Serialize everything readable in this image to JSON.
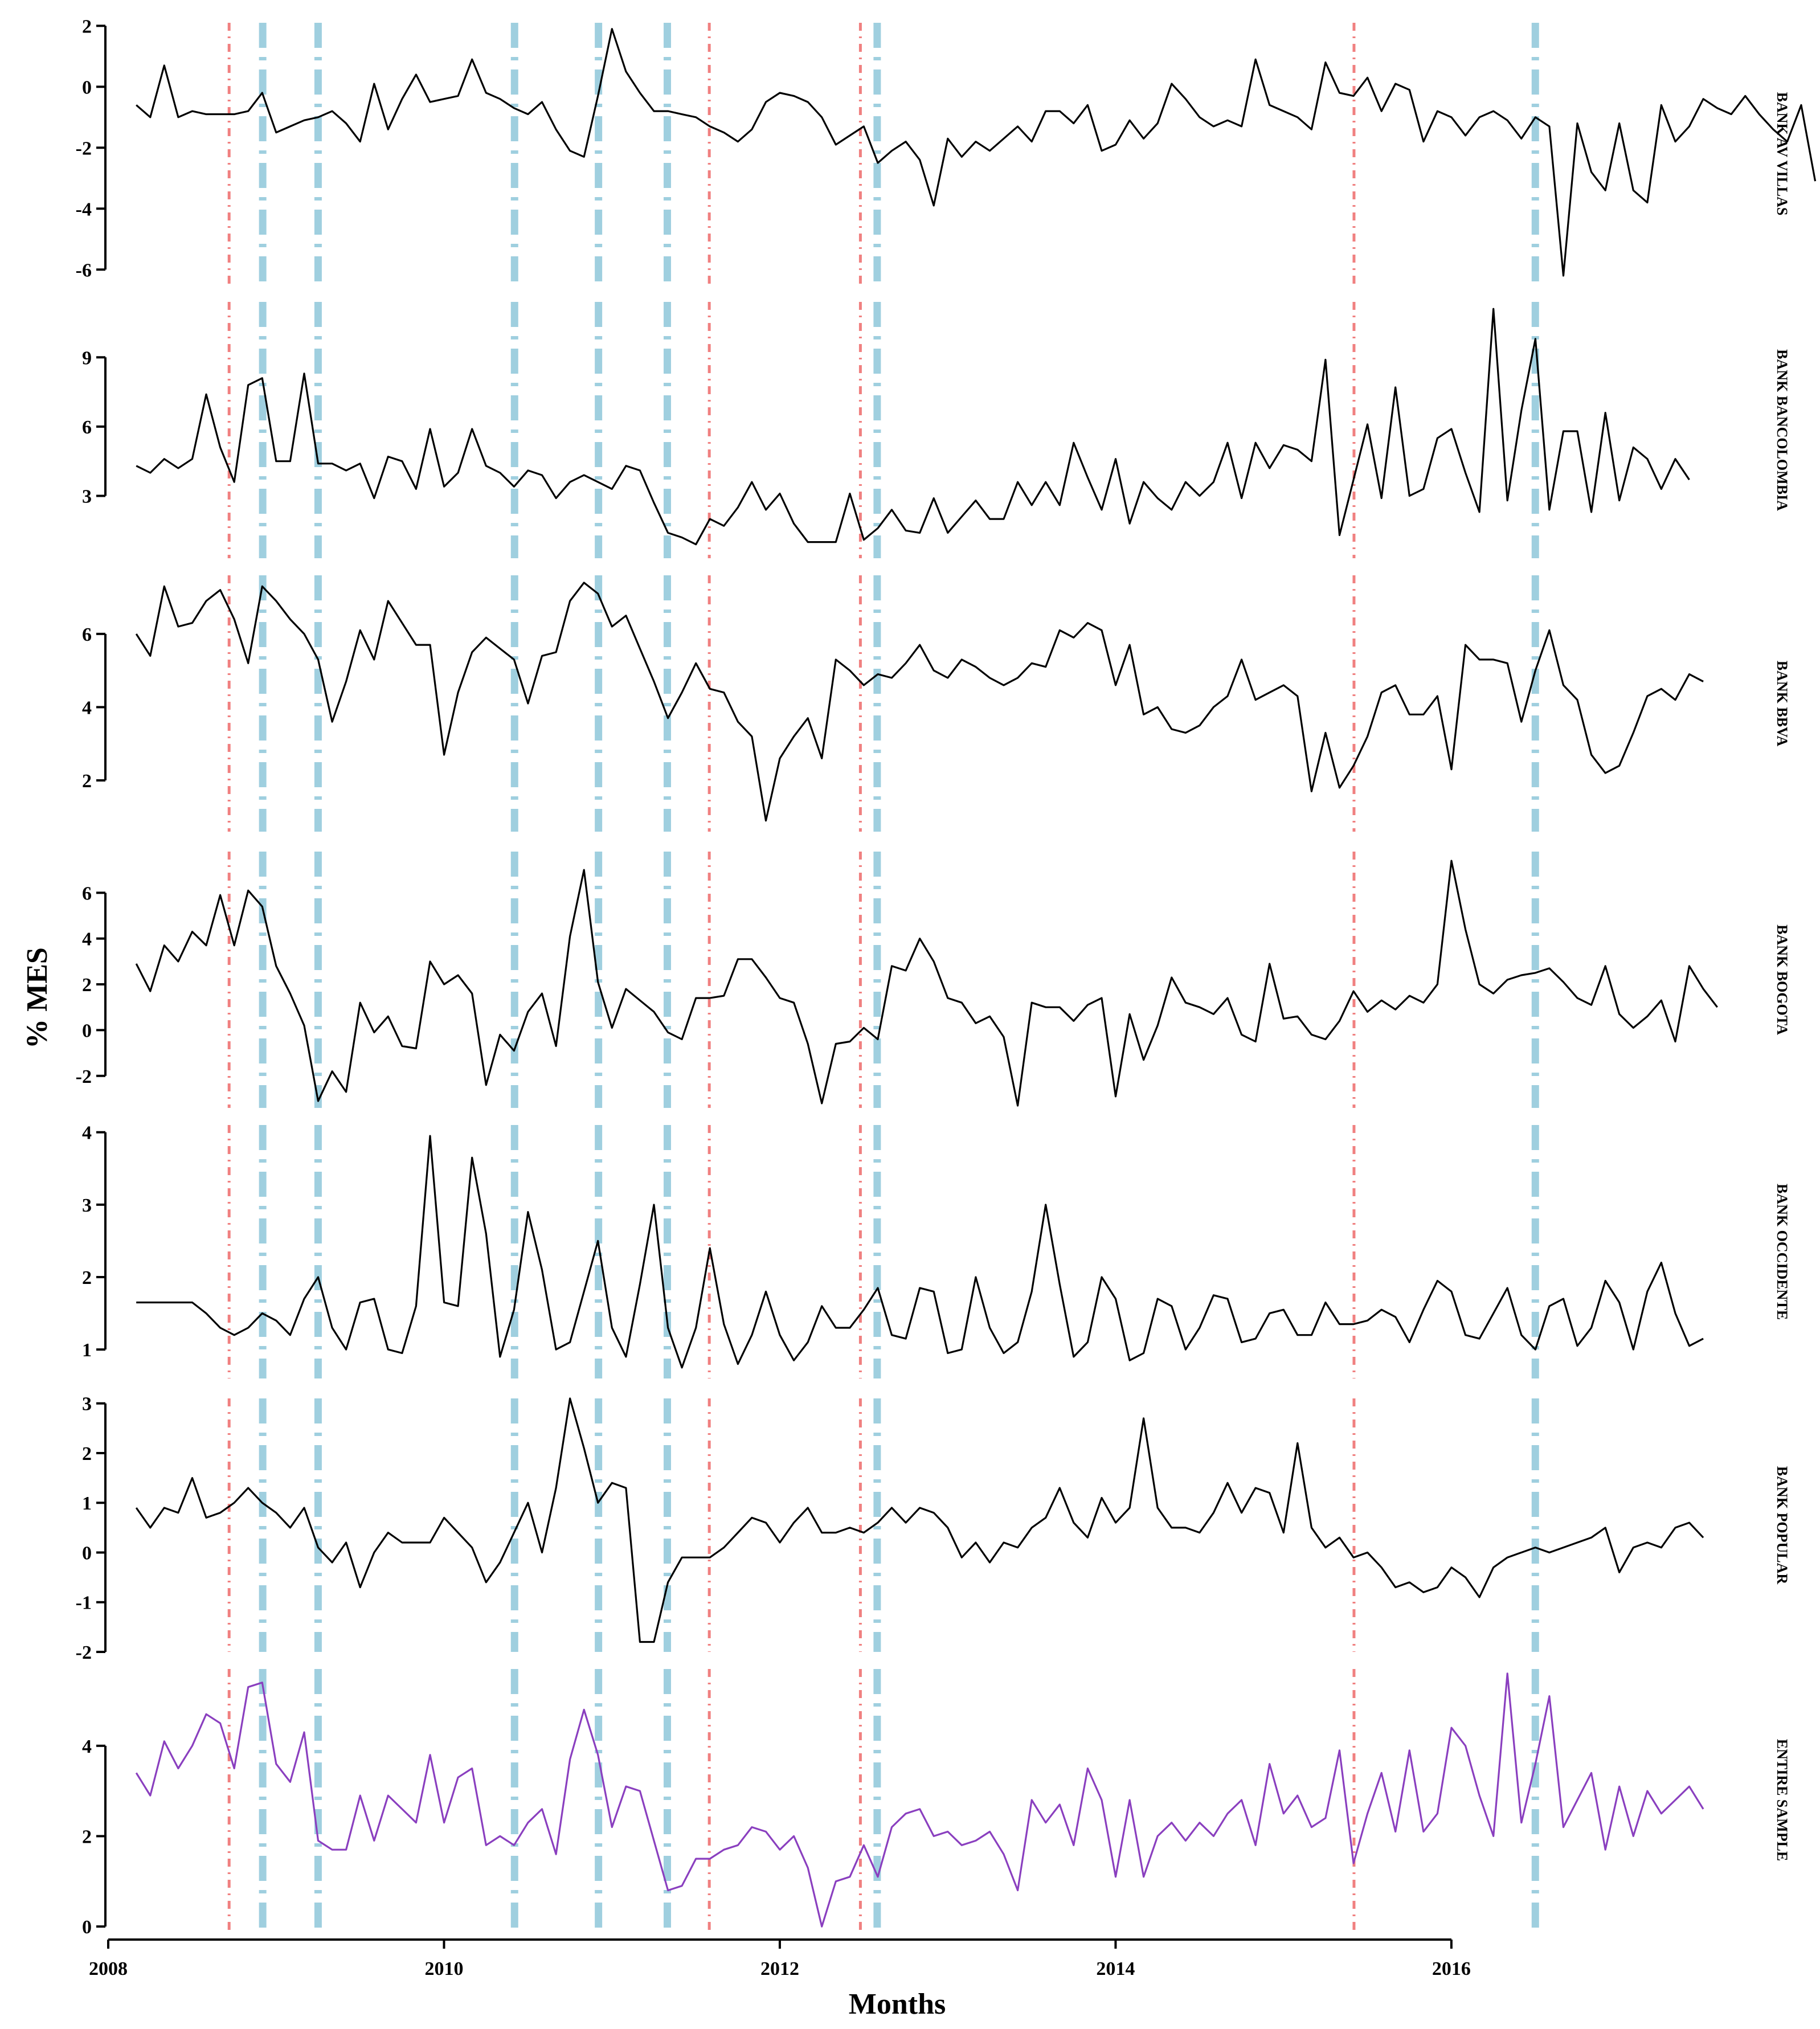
{
  "chart_data": {
    "type": "line",
    "xlabel": "Months",
    "ylabel": "% MES",
    "xlim": [
      2008.0,
      2017.5
    ],
    "x_ticks": [
      "2008",
      "2010",
      "2012",
      "2014",
      "2016"
    ],
    "x_tick_values": [
      2008,
      2010,
      2012,
      2014,
      2016
    ],
    "grid": false,
    "colors": {
      "series": "#000000",
      "entire_sample": "#8a3fbf",
      "red_vline": "#f08080",
      "blue_vline": "#9fcfdf"
    },
    "vlines": {
      "red_dotdash": [
        2008.72,
        2011.58,
        2012.48,
        2015.42
      ],
      "blue_dashdot": [
        2008.92,
        2009.25,
        2010.42,
        2010.92,
        2011.33,
        2012.58,
        2016.5
      ]
    },
    "start": 2008.167,
    "step_months": 1,
    "panels": [
      {
        "name": "BANK AV VILLAS",
        "ylim": [
          -6.5,
          2.1
        ],
        "yticks": [
          "2",
          "0",
          "-2",
          "-4",
          "-6"
        ],
        "ytick_values": [
          2,
          0,
          -2,
          -4,
          -6
        ],
        "color": "#000000",
        "values": [
          -0.6,
          -1.0,
          0.7,
          -1.0,
          -0.8,
          -0.9,
          -0.9,
          -0.9,
          -0.8,
          -0.2,
          -1.5,
          -1.3,
          -1.1,
          -1.0,
          -0.8,
          -1.2,
          -1.8,
          0.1,
          -1.4,
          -0.4,
          0.4,
          -0.5,
          -0.4,
          -0.3,
          0.9,
          -0.2,
          -0.4,
          -0.7,
          -0.9,
          -0.5,
          -1.4,
          -2.1,
          -2.3,
          -0.3,
          1.9,
          0.5,
          -0.2,
          -0.8,
          -0.8,
          -0.9,
          -1.0,
          -1.3,
          -1.5,
          -1.8,
          -1.4,
          -0.5,
          -0.2,
          -0.3,
          -0.5,
          -1.0,
          -1.9,
          -1.6,
          -1.3,
          -2.5,
          -2.1,
          -1.8,
          -2.4,
          -3.9,
          -1.7,
          -2.3,
          -1.8,
          -2.1,
          -1.7,
          -1.3,
          -1.8,
          -0.8,
          -0.8,
          -1.2,
          -0.6,
          -2.1,
          -1.9,
          -1.1,
          -1.7,
          -1.2,
          0.1,
          -0.4,
          -1.0,
          -1.3,
          -1.1,
          -1.3,
          0.9,
          -0.6,
          -0.8,
          -1.0,
          -1.4,
          0.8,
          -0.2,
          -0.3,
          0.3,
          -0.8,
          0.1,
          -0.1,
          -1.8,
          -0.8,
          -1.0,
          -1.6,
          -1.0,
          -0.8,
          -1.1,
          -1.7,
          -1.0,
          -1.3,
          -6.2,
          -1.2,
          -2.8,
          -3.4,
          -1.2,
          -3.4,
          -3.8,
          -0.6,
          -1.8,
          -1.3,
          -0.4,
          -0.7,
          -0.9,
          -0.3,
          -0.9,
          -1.4,
          -1.8,
          -0.6,
          -3.1
        ]
      },
      {
        "name": "BANK BANCOLOMBIA",
        "ylim": [
          0.3,
          11.4
        ],
        "yticks": [
          "9",
          "6",
          "3"
        ],
        "ytick_values": [
          9,
          6,
          3
        ],
        "color": "#000000",
        "values": [
          4.3,
          4.0,
          4.6,
          4.2,
          4.6,
          7.4,
          5.1,
          3.6,
          7.8,
          8.1,
          4.5,
          4.5,
          8.3,
          4.4,
          4.4,
          4.1,
          4.4,
          2.9,
          4.7,
          4.5,
          3.3,
          5.9,
          3.4,
          4.0,
          5.9,
          4.3,
          4.0,
          3.4,
          4.1,
          3.9,
          2.9,
          3.6,
          3.9,
          3.6,
          3.3,
          4.3,
          4.1,
          2.7,
          1.4,
          1.2,
          0.9,
          2.0,
          1.7,
          2.5,
          3.6,
          2.4,
          3.1,
          1.8,
          1.0,
          1.0,
          1.0,
          3.1,
          1.1,
          1.6,
          2.4,
          1.5,
          1.4,
          2.9,
          1.4,
          2.1,
          2.8,
          2.0,
          2.0,
          3.6,
          2.6,
          3.6,
          2.6,
          5.3,
          3.8,
          2.4,
          4.6,
          1.8,
          3.6,
          2.9,
          2.4,
          3.6,
          3.0,
          3.6,
          5.3,
          2.9,
          5.3,
          4.2,
          5.2,
          5.0,
          4.5,
          8.9,
          1.3,
          3.7,
          6.1,
          2.9,
          7.7,
          3.0,
          3.3,
          5.5,
          5.9,
          4.0,
          2.3,
          11.1,
          2.8,
          6.7,
          9.8,
          2.4,
          5.8,
          5.8,
          2.3,
          6.6,
          2.8,
          5.1,
          4.6,
          3.3,
          4.6,
          3.7
        ]
      },
      {
        "name": "BANK BBVA",
        "ylim": [
          0.6,
          7.6
        ],
        "yticks": [
          "6",
          "4",
          "2"
        ],
        "ytick_values": [
          6,
          4,
          2
        ],
        "color": "#000000",
        "values": [
          6.0,
          5.4,
          7.3,
          6.2,
          6.3,
          6.9,
          7.2,
          6.4,
          5.2,
          7.3,
          6.9,
          6.4,
          6.0,
          5.3,
          3.6,
          4.7,
          6.1,
          5.3,
          6.9,
          6.3,
          5.7,
          5.7,
          2.7,
          4.4,
          5.5,
          5.9,
          5.6,
          5.3,
          4.1,
          5.4,
          5.5,
          6.9,
          7.4,
          7.1,
          6.2,
          6.5,
          5.6,
          4.7,
          3.7,
          4.4,
          5.2,
          4.5,
          4.4,
          3.6,
          3.2,
          0.9,
          2.6,
          3.2,
          3.7,
          2.6,
          5.3,
          5.0,
          4.6,
          4.9,
          4.8,
          5.2,
          5.7,
          5.0,
          4.8,
          5.3,
          5.1,
          4.8,
          4.6,
          4.8,
          5.2,
          5.1,
          6.1,
          5.9,
          6.3,
          6.1,
          4.6,
          5.7,
          3.8,
          4.0,
          3.4,
          3.3,
          3.5,
          4.0,
          4.3,
          5.3,
          4.2,
          4.4,
          4.6,
          4.3,
          1.7,
          3.3,
          1.8,
          2.4,
          3.2,
          4.4,
          4.6,
          3.8,
          3.8,
          4.3,
          2.3,
          5.7,
          5.3,
          5.3,
          5.2,
          3.6,
          5.0,
          6.1,
          4.6,
          4.2,
          2.7,
          2.2,
          2.4,
          3.3,
          4.3,
          4.5,
          4.2,
          4.9,
          4.7
        ]
      },
      {
        "name": "BANK BOGOTA",
        "ylim": [
          -3.4,
          7.8
        ],
        "yticks": [
          "6",
          "4",
          "2",
          "0",
          "-2"
        ],
        "ytick_values": [
          6,
          4,
          2,
          0,
          -2
        ],
        "color": "#000000",
        "values": [
          2.9,
          1.7,
          3.7,
          3.0,
          4.3,
          3.7,
          5.9,
          3.7,
          6.1,
          5.4,
          2.8,
          1.6,
          0.2,
          -3.1,
          -1.8,
          -2.7,
          1.2,
          -0.1,
          0.6,
          -0.7,
          -0.8,
          3.0,
          2.0,
          2.4,
          1.6,
          -2.4,
          -0.2,
          -0.9,
          0.8,
          1.6,
          -0.7,
          4.1,
          7.0,
          2.1,
          0.1,
          1.8,
          1.3,
          0.8,
          -0.1,
          -0.4,
          1.4,
          1.4,
          1.5,
          3.1,
          3.1,
          2.3,
          1.4,
          1.2,
          -0.6,
          -3.2,
          -0.6,
          -0.5,
          0.1,
          -0.4,
          2.8,
          2.6,
          4.0,
          3.0,
          1.4,
          1.2,
          0.3,
          0.6,
          -0.3,
          -3.3,
          1.2,
          1.0,
          1.0,
          0.4,
          1.1,
          1.4,
          -2.9,
          0.7,
          -1.3,
          0.2,
          2.3,
          1.2,
          1.0,
          0.7,
          1.4,
          -0.2,
          -0.5,
          2.9,
          0.5,
          0.6,
          -0.2,
          -0.4,
          0.4,
          1.7,
          0.8,
          1.3,
          0.9,
          1.5,
          1.2,
          2.0,
          7.4,
          4.4,
          2.0,
          1.6,
          2.2,
          2.4,
          2.5,
          2.7,
          2.1,
          1.4,
          1.1,
          2.8,
          0.7,
          0.1,
          0.6,
          1.3,
          -0.5,
          2.8,
          1.8,
          1.0
        ]
      },
      {
        "name": "BANK OCCIDENTE",
        "ylim": [
          0.6,
          4.1
        ],
        "yticks": [
          "4",
          "3",
          "2",
          "1"
        ],
        "ytick_values": [
          4,
          3,
          2,
          1
        ],
        "color": "#000000",
        "values": [
          1.65,
          1.65,
          1.65,
          1.65,
          1.65,
          1.5,
          1.3,
          1.2,
          1.3,
          1.5,
          1.4,
          1.2,
          1.7,
          2.0,
          1.3,
          1.0,
          1.65,
          1.7,
          1.0,
          0.95,
          1.6,
          3.95,
          1.65,
          1.6,
          3.65,
          2.6,
          0.9,
          1.55,
          2.9,
          2.1,
          1.0,
          1.1,
          1.8,
          2.5,
          1.3,
          0.9,
          1.9,
          3.0,
          1.3,
          0.75,
          1.3,
          2.4,
          1.35,
          0.8,
          1.2,
          1.8,
          1.2,
          0.85,
          1.1,
          1.6,
          1.3,
          1.3,
          1.55,
          1.85,
          1.2,
          1.15,
          1.85,
          1.8,
          0.95,
          1.0,
          2.0,
          1.3,
          0.95,
          1.1,
          1.8,
          3.0,
          1.9,
          0.9,
          1.1,
          2.0,
          1.7,
          0.85,
          0.95,
          1.7,
          1.6,
          1.0,
          1.3,
          1.75,
          1.7,
          1.1,
          1.15,
          1.5,
          1.55,
          1.2,
          1.2,
          1.65,
          1.35,
          1.35,
          1.4,
          1.55,
          1.45,
          1.1,
          1.55,
          1.95,
          1.8,
          1.2,
          1.15,
          1.5,
          1.85,
          1.2,
          1.0,
          1.6,
          1.7,
          1.05,
          1.3,
          1.95,
          1.65,
          1.0,
          1.8,
          2.2,
          1.5,
          1.05,
          1.15
        ]
      },
      {
        "name": "BANK POPULAR",
        "ylim": [
          -2.0,
          3.1
        ],
        "yticks": [
          "3",
          "2",
          "1",
          "0",
          "-1",
          "-2"
        ],
        "ytick_values": [
          3,
          2,
          1,
          0,
          -1,
          -2
        ],
        "color": "#000000",
        "values": [
          0.9,
          0.5,
          0.9,
          0.8,
          1.5,
          0.7,
          0.8,
          1.0,
          1.3,
          1.0,
          0.8,
          0.5,
          0.9,
          0.1,
          -0.2,
          0.2,
          -0.7,
          0.0,
          0.4,
          0.2,
          0.2,
          0.2,
          0.7,
          0.4,
          0.1,
          -0.6,
          -0.2,
          0.4,
          1.0,
          0.0,
          1.3,
          3.1,
          2.1,
          1.0,
          1.4,
          1.3,
          -1.8,
          -1.8,
          -0.6,
          -0.1,
          -0.1,
          -0.1,
          0.1,
          0.4,
          0.7,
          0.6,
          0.2,
          0.6,
          0.9,
          0.4,
          0.4,
          0.5,
          0.4,
          0.6,
          0.9,
          0.6,
          0.9,
          0.8,
          0.5,
          -0.1,
          0.2,
          -0.2,
          0.2,
          0.1,
          0.5,
          0.7,
          1.3,
          0.6,
          0.3,
          1.1,
          0.6,
          0.9,
          2.7,
          0.9,
          0.5,
          0.5,
          0.4,
          0.8,
          1.4,
          0.8,
          1.3,
          1.2,
          0.4,
          2.2,
          0.5,
          0.1,
          0.3,
          -0.1,
          0.0,
          -0.3,
          -0.7,
          -0.6,
          -0.8,
          -0.7,
          -0.3,
          -0.5,
          -0.9,
          -0.3,
          -0.1,
          0.0,
          0.1,
          0.0,
          0.1,
          0.2,
          0.3,
          0.5,
          -0.4,
          0.1,
          0.2,
          0.1,
          0.5,
          0.6,
          0.3
        ]
      },
      {
        "name": "ENTIRE SAMPLE",
        "ylim": [
          -0.1,
          5.7
        ],
        "yticks": [
          "4",
          "2",
          "0"
        ],
        "ytick_values": [
          4,
          2,
          0
        ],
        "color": "#8a3fbf",
        "values": [
          3.4,
          2.9,
          4.1,
          3.5,
          4.0,
          4.7,
          4.5,
          3.5,
          5.3,
          5.4,
          3.6,
          3.2,
          4.3,
          1.9,
          1.7,
          1.7,
          2.9,
          1.9,
          2.9,
          2.6,
          2.3,
          3.8,
          2.3,
          3.3,
          3.5,
          1.8,
          2.0,
          1.8,
          2.3,
          2.6,
          1.6,
          3.7,
          4.8,
          3.8,
          2.2,
          3.1,
          3.0,
          1.9,
          0.8,
          0.9,
          1.5,
          1.5,
          1.7,
          1.8,
          2.2,
          2.1,
          1.7,
          2.0,
          1.3,
          0.0,
          1.0,
          1.1,
          1.8,
          1.1,
          2.2,
          2.5,
          2.6,
          2.0,
          2.1,
          1.8,
          1.9,
          2.1,
          1.6,
          0.8,
          2.8,
          2.3,
          2.7,
          1.8,
          3.5,
          2.8,
          1.1,
          2.8,
          1.1,
          2.0,
          2.3,
          1.9,
          2.3,
          2.0,
          2.5,
          2.8,
          1.8,
          3.6,
          2.5,
          2.9,
          2.2,
          2.4,
          3.9,
          1.4,
          2.5,
          3.4,
          2.1,
          3.9,
          2.1,
          2.5,
          4.4,
          4.0,
          2.9,
          2.0,
          5.6,
          2.3,
          3.6,
          5.1,
          2.2,
          2.8,
          3.4,
          1.7,
          3.1,
          2.0,
          3.0,
          2.5,
          2.8,
          3.1,
          2.6
        ]
      }
    ]
  }
}
